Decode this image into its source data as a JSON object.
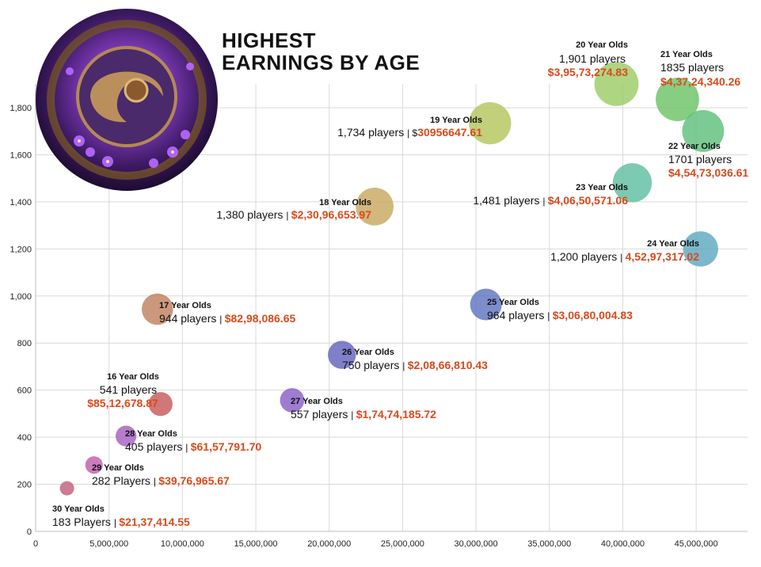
{
  "title": {
    "line1": "HIGHEST",
    "line2": "EARNINGS BY AGE"
  },
  "logo": {
    "name": "aegis-emblem"
  },
  "colors": {
    "earnings": "#d84a1b",
    "grid": "#d9d9d9"
  },
  "chart_data": {
    "type": "scatter",
    "title": "HIGHEST EARNINGS BY AGE",
    "xlim": [
      0,
      48500000
    ],
    "ylim": [
      0,
      1900
    ],
    "x_ticks": [
      "0",
      "5,000,000",
      "10,000,000",
      "15,000,000",
      "20,000,000",
      "25,000,000",
      "30,000,000",
      "35,000,000",
      "40,000,000",
      "45,000,000"
    ],
    "x_tick_values": [
      0,
      5000000,
      10000000,
      15000000,
      20000000,
      25000000,
      30000000,
      35000000,
      40000000,
      45000000
    ],
    "y_ticks": [
      "0",
      "200",
      "400",
      "600",
      "800",
      "1,000",
      "1,200",
      "1,400",
      "1,600",
      "1,800"
    ],
    "y_tick_values": [
      0,
      200,
      400,
      600,
      800,
      1000,
      1200,
      1400,
      1600,
      1800
    ],
    "grid": true,
    "points": [
      {
        "age": "16 Year Olds",
        "players_text": "541 players",
        "earnings_text": "$85,12,678.87",
        "x": 8512679,
        "y": 541,
        "color": "#c65a5a",
        "label_pos": "above"
      },
      {
        "age": "17 Year Olds",
        "players_text": "944 players",
        "earnings_text": "$82,98,086.65",
        "x": 8298087,
        "y": 944,
        "color": "#c08060",
        "label_pos": "right"
      },
      {
        "age": "18 Year Olds",
        "players_text": "1,380 players",
        "earnings_text": "$2,30,96,653.97",
        "x": 23096654,
        "y": 1380,
        "color": "#c8a860",
        "label_pos": "left"
      },
      {
        "age": "19 Year Olds",
        "players_text": "1,734 players",
        "earnings_text": "30956647.61",
        "earnings_prefix": "$",
        "x": 30956648,
        "y": 1734,
        "color": "#b5c65f",
        "label_pos": "left"
      },
      {
        "age": "20 Year Olds",
        "players_text": "1,901 players",
        "earnings_text": "$3,95,73,274.83",
        "x": 39573275,
        "y": 1901,
        "color": "#9ccc65",
        "label_pos": "above"
      },
      {
        "age": "21 Year Olds",
        "players_text": "1835 players",
        "earnings_text": "$4,37,24,340.26",
        "x": 43724340,
        "y": 1835,
        "color": "#6cc368",
        "label_pos": "above"
      },
      {
        "age": "22 Year Olds",
        "players_text": "1701 players",
        "earnings_text": "$4,54,73,036.61",
        "x": 45473037,
        "y": 1701,
        "color": "#5fbf7e",
        "label_pos": "below"
      },
      {
        "age": "23 Year Olds",
        "players_text": "1,481 players",
        "earnings_text": "$4,06,50,571.06",
        "x": 40650571,
        "y": 1481,
        "color": "#5fbea0",
        "label_pos": "left"
      },
      {
        "age": "24 Year Olds",
        "players_text": "1,200 players",
        "earnings_text": "4,52,97,317.02",
        "x": 45297317,
        "y": 1200,
        "color": "#5fa8c0",
        "label_pos": "left"
      },
      {
        "age": "25 Year Olds",
        "players_text": "964 players",
        "earnings_text": "$3,06,80,004.83",
        "x": 30680005,
        "y": 964,
        "color": "#5f74c0",
        "label_pos": "right"
      },
      {
        "age": "26 Year Olds",
        "players_text": "750 players",
        "earnings_text": "$2,08,66,810.43",
        "x": 20866810,
        "y": 750,
        "color": "#6463bd",
        "label_pos": "right"
      },
      {
        "age": "27 Year Olds",
        "players_text": "557 players",
        "earnings_text": "$1,74,74,185.72",
        "x": 17474186,
        "y": 557,
        "color": "#8a5fc4",
        "label_pos": "right"
      },
      {
        "age": "28 Year Olds",
        "players_text": "405 players",
        "earnings_text": "$61,57,791.70",
        "x": 6157792,
        "y": 405,
        "color": "#a75fc2",
        "label_pos": "right"
      },
      {
        "age": "29 Year Olds",
        "players_text": "282 Players",
        "earnings_text": "$39,76,965.67",
        "x": 3976966,
        "y": 282,
        "color": "#c05fae",
        "label_pos": "right"
      },
      {
        "age": "30 Year Olds",
        "players_text": "183 Players",
        "earnings_text": "$21,37,414.55",
        "x": 2137415,
        "y": 183,
        "color": "#c25f7e",
        "label_pos": "below"
      }
    ]
  }
}
